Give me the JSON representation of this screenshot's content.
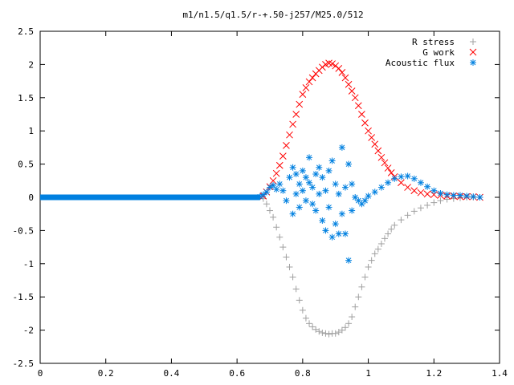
{
  "chart_data": {
    "type": "scatter",
    "title": "m1/n1.5/q1.5/r-+.50-j257/M25.0/512",
    "xlabel": "",
    "ylabel": "",
    "xlim": [
      0,
      1.4
    ],
    "ylim": [
      -2.5,
      2.5
    ],
    "x_ticks": [
      0,
      0.2,
      0.4,
      0.6,
      0.8,
      1,
      1.2,
      1.4
    ],
    "x_tick_labels": [
      "0",
      "0.2",
      "0.4",
      "0.6",
      "0.8",
      "1",
      "1.2",
      "1.4"
    ],
    "y_ticks": [
      -2.5,
      -2,
      -1.5,
      -1,
      -0.5,
      0,
      0.5,
      1,
      1.5,
      2,
      2.5
    ],
    "y_tick_labels": [
      "-2.5",
      "-2",
      "-1.5",
      "-1",
      "-0.5",
      "0",
      "0.5",
      "1",
      "1.5",
      "2",
      "2.5"
    ],
    "grid": false,
    "legend_position": "top-right",
    "series": [
      {
        "name": "R stress",
        "marker": "plus",
        "color": "#a0a0a0",
        "points": [
          [
            0.68,
            -0.02
          ],
          [
            0.69,
            -0.1
          ],
          [
            0.7,
            -0.2
          ],
          [
            0.71,
            -0.3
          ],
          [
            0.72,
            -0.45
          ],
          [
            0.73,
            -0.6
          ],
          [
            0.74,
            -0.75
          ],
          [
            0.75,
            -0.9
          ],
          [
            0.76,
            -1.05
          ],
          [
            0.77,
            -1.2
          ],
          [
            0.78,
            -1.38
          ],
          [
            0.79,
            -1.55
          ],
          [
            0.8,
            -1.7
          ],
          [
            0.81,
            -1.82
          ],
          [
            0.82,
            -1.9
          ],
          [
            0.83,
            -1.95
          ],
          [
            0.84,
            -1.99
          ],
          [
            0.85,
            -2.02
          ],
          [
            0.86,
            -2.04
          ],
          [
            0.87,
            -2.05
          ],
          [
            0.88,
            -2.06
          ],
          [
            0.89,
            -2.05
          ],
          [
            0.9,
            -2.05
          ],
          [
            0.91,
            -2.03
          ],
          [
            0.92,
            -2.0
          ],
          [
            0.93,
            -1.96
          ],
          [
            0.94,
            -1.9
          ],
          [
            0.95,
            -1.8
          ],
          [
            0.96,
            -1.65
          ],
          [
            0.97,
            -1.5
          ],
          [
            0.98,
            -1.35
          ],
          [
            0.99,
            -1.2
          ],
          [
            1.0,
            -1.05
          ],
          [
            1.01,
            -0.95
          ],
          [
            1.02,
            -0.85
          ],
          [
            1.03,
            -0.78
          ],
          [
            1.04,
            -0.7
          ],
          [
            1.05,
            -0.62
          ],
          [
            1.06,
            -0.55
          ],
          [
            1.07,
            -0.48
          ],
          [
            1.08,
            -0.42
          ],
          [
            1.1,
            -0.34
          ],
          [
            1.12,
            -0.27
          ],
          [
            1.14,
            -0.21
          ],
          [
            1.16,
            -0.16
          ],
          [
            1.18,
            -0.12
          ],
          [
            1.2,
            -0.08
          ],
          [
            1.22,
            -0.05
          ],
          [
            1.24,
            -0.03
          ],
          [
            1.26,
            -0.02
          ],
          [
            1.28,
            -0.01
          ],
          [
            1.3,
            0.0
          ],
          [
            1.32,
            0.0
          ],
          [
            1.34,
            0.0
          ]
        ]
      },
      {
        "name": "G work",
        "marker": "cross",
        "color": "#ff0000",
        "points": [
          [
            0.68,
            0.02
          ],
          [
            0.69,
            0.08
          ],
          [
            0.7,
            0.16
          ],
          [
            0.71,
            0.25
          ],
          [
            0.72,
            0.36
          ],
          [
            0.73,
            0.48
          ],
          [
            0.74,
            0.62
          ],
          [
            0.75,
            0.78
          ],
          [
            0.76,
            0.94
          ],
          [
            0.77,
            1.1
          ],
          [
            0.78,
            1.25
          ],
          [
            0.79,
            1.4
          ],
          [
            0.8,
            1.55
          ],
          [
            0.81,
            1.65
          ],
          [
            0.82,
            1.74
          ],
          [
            0.83,
            1.8
          ],
          [
            0.84,
            1.86
          ],
          [
            0.85,
            1.91
          ],
          [
            0.86,
            1.96
          ],
          [
            0.87,
            2.0
          ],
          [
            0.88,
            2.02
          ],
          [
            0.89,
            2.01
          ],
          [
            0.9,
            1.98
          ],
          [
            0.91,
            1.94
          ],
          [
            0.92,
            1.88
          ],
          [
            0.93,
            1.8
          ],
          [
            0.94,
            1.7
          ],
          [
            0.95,
            1.6
          ],
          [
            0.96,
            1.5
          ],
          [
            0.97,
            1.38
          ],
          [
            0.98,
            1.25
          ],
          [
            0.99,
            1.12
          ],
          [
            1.0,
            1.0
          ],
          [
            1.01,
            0.9
          ],
          [
            1.02,
            0.8
          ],
          [
            1.03,
            0.7
          ],
          [
            1.04,
            0.6
          ],
          [
            1.05,
            0.52
          ],
          [
            1.06,
            0.44
          ],
          [
            1.07,
            0.37
          ],
          [
            1.08,
            0.31
          ],
          [
            1.1,
            0.22
          ],
          [
            1.12,
            0.15
          ],
          [
            1.14,
            0.1
          ],
          [
            1.16,
            0.07
          ],
          [
            1.18,
            0.05
          ],
          [
            1.2,
            0.04
          ],
          [
            1.22,
            0.03
          ],
          [
            1.24,
            0.02
          ],
          [
            1.26,
            0.02
          ],
          [
            1.28,
            0.01
          ],
          [
            1.3,
            0.01
          ],
          [
            1.32,
            0.01
          ],
          [
            1.34,
            0.0
          ]
        ]
      },
      {
        "name": "Acoustic flux",
        "marker": "star",
        "color": "#0080e0",
        "points": [
          [
            0.67,
            0.01
          ],
          [
            0.68,
            0.04
          ],
          [
            0.69,
            0.08
          ],
          [
            0.7,
            0.15
          ],
          [
            0.71,
            0.18
          ],
          [
            0.72,
            0.12
          ],
          [
            0.73,
            0.2
          ],
          [
            0.74,
            0.1
          ],
          [
            0.75,
            -0.05
          ],
          [
            0.76,
            0.3
          ],
          [
            0.77,
            0.45
          ],
          [
            0.77,
            -0.25
          ],
          [
            0.78,
            0.35
          ],
          [
            0.78,
            0.05
          ],
          [
            0.79,
            0.2
          ],
          [
            0.79,
            -0.15
          ],
          [
            0.8,
            0.4
          ],
          [
            0.8,
            0.1
          ],
          [
            0.81,
            -0.05
          ],
          [
            0.81,
            0.3
          ],
          [
            0.82,
            0.22
          ],
          [
            0.82,
            0.6
          ],
          [
            0.83,
            -0.1
          ],
          [
            0.83,
            0.15
          ],
          [
            0.84,
            0.35
          ],
          [
            0.84,
            -0.2
          ],
          [
            0.85,
            0.05
          ],
          [
            0.85,
            0.45
          ],
          [
            0.86,
            0.3
          ],
          [
            0.86,
            -0.35
          ],
          [
            0.87,
            -0.5
          ],
          [
            0.87,
            0.1
          ],
          [
            0.88,
            0.4
          ],
          [
            0.88,
            -0.15
          ],
          [
            0.89,
            0.55
          ],
          [
            0.89,
            -0.6
          ],
          [
            0.9,
            0.2
          ],
          [
            0.9,
            -0.4
          ],
          [
            0.91,
            -0.55
          ],
          [
            0.91,
            0.05
          ],
          [
            0.92,
            0.75
          ],
          [
            0.92,
            -0.25
          ],
          [
            0.93,
            -0.55
          ],
          [
            0.93,
            0.15
          ],
          [
            0.94,
            -0.95
          ],
          [
            0.94,
            0.5
          ],
          [
            0.95,
            0.2
          ],
          [
            0.95,
            -0.2
          ],
          [
            0.96,
            0.0
          ],
          [
            0.97,
            -0.05
          ],
          [
            0.98,
            -0.1
          ],
          [
            0.99,
            -0.05
          ],
          [
            1.0,
            0.02
          ],
          [
            1.02,
            0.08
          ],
          [
            1.04,
            0.15
          ],
          [
            1.06,
            0.22
          ],
          [
            1.08,
            0.28
          ],
          [
            1.1,
            0.31
          ],
          [
            1.12,
            0.32
          ],
          [
            1.14,
            0.28
          ],
          [
            1.16,
            0.22
          ],
          [
            1.18,
            0.16
          ],
          [
            1.2,
            0.1
          ],
          [
            1.22,
            0.06
          ],
          [
            1.24,
            0.04
          ],
          [
            1.26,
            0.03
          ],
          [
            1.28,
            0.03
          ],
          [
            1.3,
            0.02
          ],
          [
            1.32,
            0.01
          ],
          [
            1.34,
            0.0
          ]
        ],
        "baseline": {
          "x_from": 0.0,
          "x_to": 0.67,
          "y": 0.0
        }
      }
    ]
  }
}
